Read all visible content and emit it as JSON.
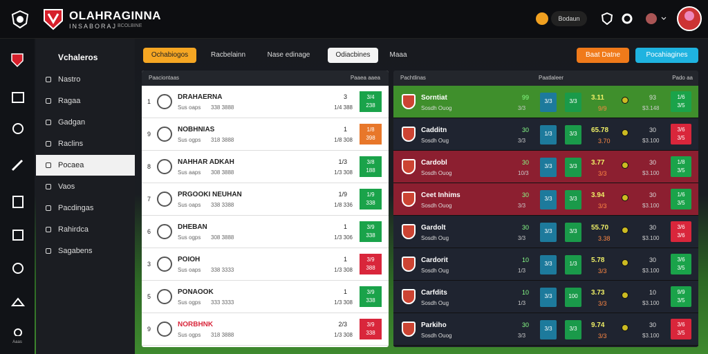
{
  "header": {
    "brand": "OLAHRAGINNA",
    "tagline": "INSABORAJ",
    "tagline_small": "BCOLBINE",
    "search": "Bodaun"
  },
  "sidebar": {
    "title": "Vchaleros",
    "items": [
      "Nastro",
      "Ragaa",
      "Gadgan",
      "Raclins",
      "Pocaea",
      "Vaos",
      "Pacdingas",
      "Rahirdca",
      "Sagabens"
    ],
    "active": 4,
    "rail_label": "Aaas"
  },
  "tabs": {
    "items": [
      "Ochabiogos",
      "Racbelainn",
      "Nase edinage",
      "Odiacbines",
      "Maaa"
    ],
    "active": 0,
    "selected": 3
  },
  "actions": [
    "Baat Datne",
    "Pocahiagines"
  ],
  "standings": {
    "header": [
      "Paaciontaas",
      "Paaea aaea"
    ],
    "rows": [
      {
        "rank": "1",
        "name": "DRAHAERNA",
        "sub": "Sus oaps",
        "meta": "338 3888",
        "a": "3",
        "b": "1/4 388",
        "top": "3/4",
        "bottom": "238",
        "color": "#1aa34a"
      },
      {
        "rank": "9",
        "name": "NOBHNIAS",
        "sub": "Sus ogps",
        "meta": "318 3888",
        "a": "1",
        "b": "1/8 308",
        "top": "1/8",
        "bottom": "398",
        "color": "#e8772a"
      },
      {
        "rank": "8",
        "name": "NAHHAR ADKAH",
        "sub": "Sus aaps",
        "meta": "308 3888",
        "a": "1/3",
        "b": "1/3 308",
        "top": "3/8",
        "bottom": "188",
        "color": "#1aa34a"
      },
      {
        "rank": "7",
        "name": "PRGOOKI NEUHAN",
        "sub": "Sus oaps",
        "meta": "338 3388",
        "a": "1/9",
        "b": "1/8 336",
        "top": "1/9",
        "bottom": "338",
        "color": "#1aa34a"
      },
      {
        "rank": "6",
        "name": "DHEBAN",
        "sub": "Sus ogps",
        "meta": "308 3888",
        "a": "1",
        "b": "1/3 306",
        "top": "3/9",
        "bottom": "338",
        "color": "#1aa34a"
      },
      {
        "rank": "3",
        "name": "POIOH",
        "sub": "Sus oaps",
        "meta": "338 3333",
        "a": "1",
        "b": "1/3 308",
        "top": "3/9",
        "bottom": "388",
        "color": "#d9263b"
      },
      {
        "rank": "5",
        "name": "PONAOOK",
        "sub": "Sus ogps",
        "meta": "333 3333",
        "a": "1",
        "b": "1/3 308",
        "top": "3/9",
        "bottom": "338",
        "color": "#1aa34a"
      },
      {
        "rank": "9",
        "name": "NORBHNK",
        "sub": "Sus ogps",
        "meta": "318 3888",
        "a": "2/3",
        "b": "1/3 308",
        "top": "3/9",
        "bottom": "338",
        "color": "#d9263b"
      }
    ]
  },
  "matches": {
    "header": [
      "Pachtlinas",
      "Paatlaleer",
      "Pado aa"
    ],
    "rows": [
      {
        "name": "Sorntiat",
        "sub": "Sosdh Ouog",
        "a": "99",
        "b": "3/3",
        "box1": "3/3",
        "box2": "3/3",
        "odd": "3.11",
        "odd2": "9/9",
        "c": "93",
        "d": "$3.148",
        "fin": "1/6",
        "fin2": "3/5",
        "bg": "#3f8f2c"
      },
      {
        "name": "Cadditn",
        "sub": "Sosdh Oug",
        "a": "30",
        "b": "3/3",
        "box1": "1/3",
        "box2": "3/3",
        "odd": "65.78",
        "odd2": "3.70",
        "c": "30",
        "d": "$3.100",
        "fin": "3/6",
        "fin2": "3/5",
        "bg": "#1f2430"
      },
      {
        "name": "Cardobl",
        "sub": "Sosdh Ouog",
        "a": "30",
        "b": "10/3",
        "box1": "3/3",
        "box2": "3/3",
        "odd": "3.77",
        "odd2": "3/3",
        "c": "30",
        "d": "$3.100",
        "fin": "1/8",
        "fin2": "3/5",
        "bg": "#8c1f30"
      },
      {
        "name": "Ceet Inhims",
        "sub": "Sosdh Ouog",
        "a": "30",
        "b": "3/3",
        "box1": "3/3",
        "box2": "3/3",
        "odd": "3.94",
        "odd2": "3/3",
        "c": "30",
        "d": "$3.100",
        "fin": "1/6",
        "fin2": "3/5",
        "bg": "#8c1f30"
      },
      {
        "name": "Gardolt",
        "sub": "Sosdh Oug",
        "a": "30",
        "b": "3/3",
        "box1": "3/3",
        "box2": "3/3",
        "odd": "55.70",
        "odd2": "3.38",
        "c": "30",
        "d": "$3.100",
        "fin": "3/6",
        "fin2": "3/6",
        "bg": "#1f2430"
      },
      {
        "name": "Cardorit",
        "sub": "Sosdh Oug",
        "a": "10",
        "b": "1/3",
        "box1": "3/3",
        "box2": "1/3",
        "odd": "5.78",
        "odd2": "3/3",
        "c": "30",
        "d": "$3.100",
        "fin": "3/6",
        "fin2": "3/5",
        "bg": "#1f2430"
      },
      {
        "name": "Carfdits",
        "sub": "Sosdh Oug",
        "a": "10",
        "b": "1/3",
        "box1": "3/3",
        "box2": "100",
        "odd": "3.73",
        "odd2": "3/3",
        "c": "10",
        "d": "$3.100",
        "fin": "9/9",
        "fin2": "3/5",
        "bg": "#1f2430"
      },
      {
        "name": "Parkiho",
        "sub": "Sosdh Ouog",
        "a": "30",
        "b": "3/3",
        "box1": "3/3",
        "box2": "3/3",
        "odd": "9.74",
        "odd2": "3/3",
        "c": "30",
        "d": "$3.100",
        "fin": "3/6",
        "fin2": "3/5",
        "bg": "#1f2430"
      }
    ]
  }
}
